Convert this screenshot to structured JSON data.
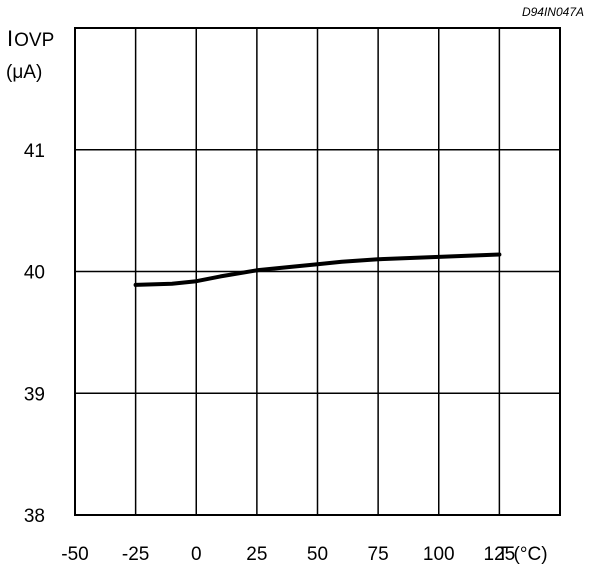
{
  "chart_data": {
    "type": "line",
    "reference": "D94IN047A",
    "ylabel_main": "I",
    "ylabel_sub": "OVP",
    "ylabel_unit": "(μA)",
    "xlabel": "T (°C)",
    "x_ticks": [
      "-50",
      "-25",
      "0",
      "25",
      "50",
      "75",
      "100",
      "125"
    ],
    "y_ticks": [
      "38",
      "39",
      "40",
      "41"
    ],
    "xlim": [
      -50,
      150
    ],
    "ylim": [
      38,
      42
    ],
    "grid": true,
    "series": [
      {
        "x": [
          -25,
          -10,
          0,
          10,
          25,
          40,
          50,
          60,
          75,
          100,
          125
        ],
        "values": [
          39.89,
          39.9,
          39.92,
          39.96,
          40.01,
          40.04,
          40.06,
          40.08,
          40.1,
          40.12,
          40.14
        ]
      }
    ]
  }
}
